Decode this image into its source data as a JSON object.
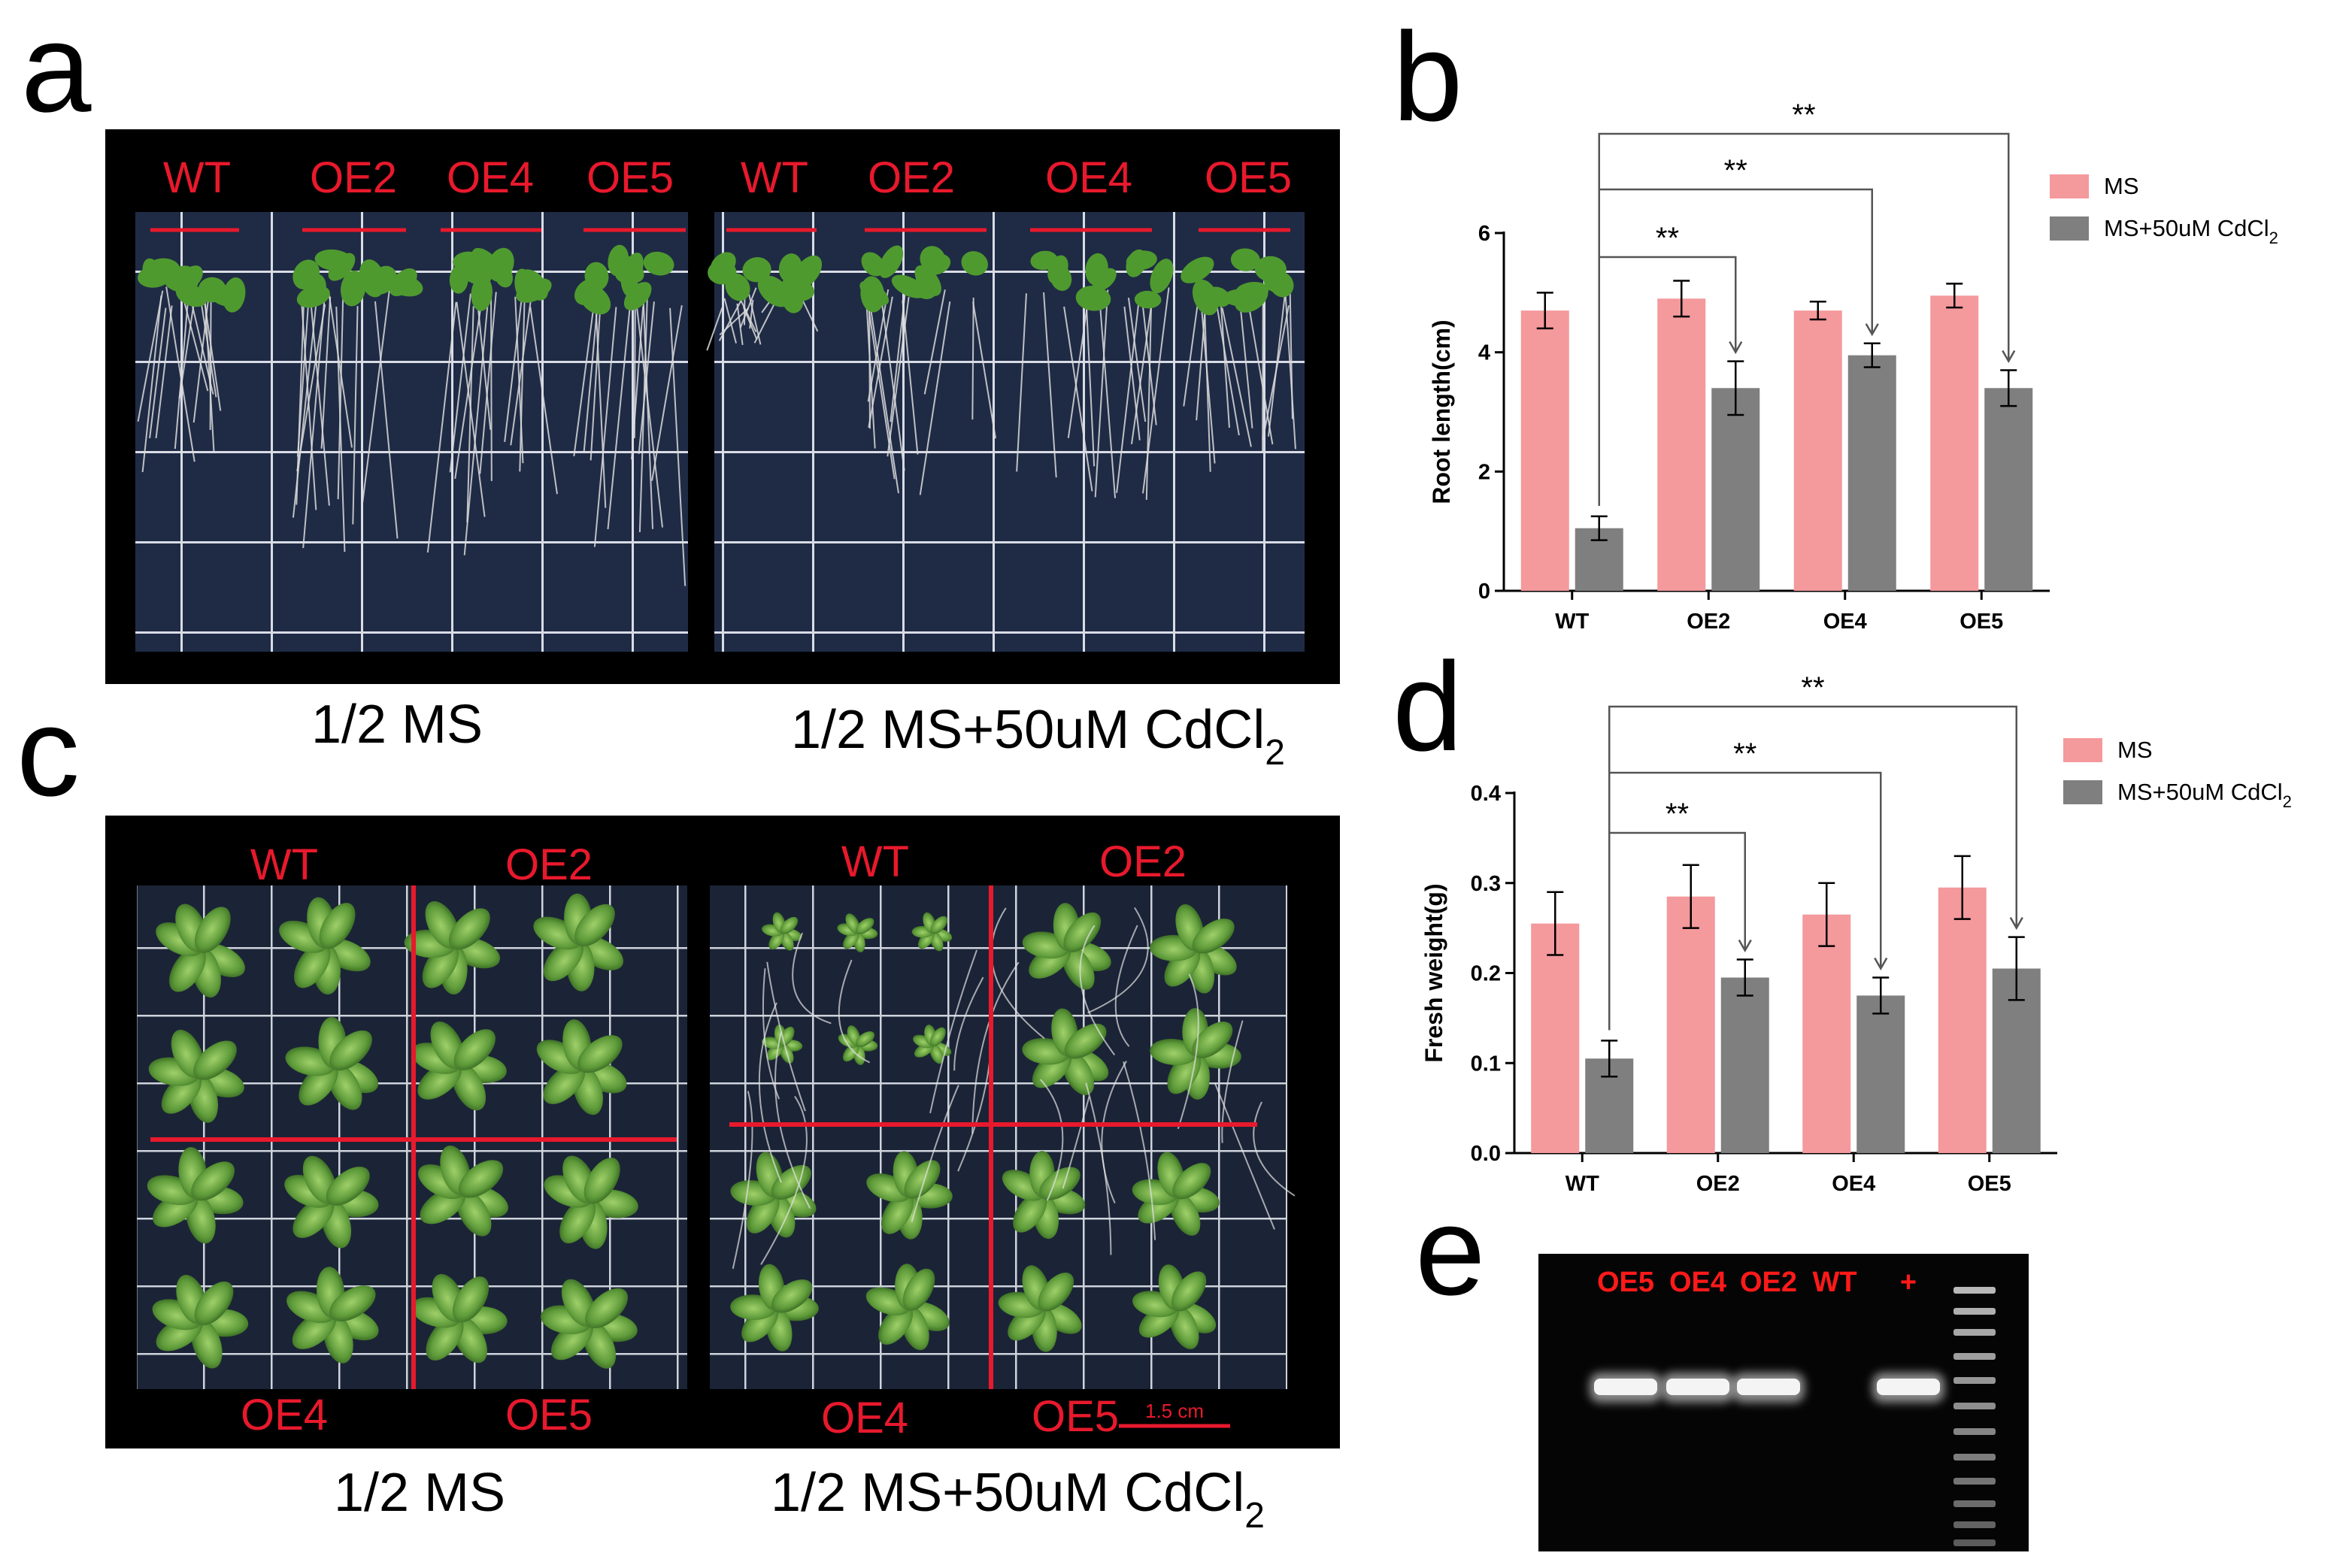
{
  "panels": {
    "a": {
      "letter": "a",
      "left_labels": [
        "WT",
        "OE2",
        "OE4",
        "OE5"
      ],
      "right_labels": [
        "WT",
        "OE2",
        "OE4",
        "OE5"
      ],
      "caption_left": "1/2 MS",
      "caption_right_main": "1/2 MS+50uM CdCl",
      "caption_right_sub": "2"
    },
    "b": {
      "letter": "b"
    },
    "c": {
      "letter": "c",
      "left_top": [
        "WT",
        "OE2"
      ],
      "left_bottom": [
        "OE4",
        "OE5"
      ],
      "right_top": [
        "WT",
        "OE2"
      ],
      "right_bottom": [
        "OE4",
        "OE5"
      ],
      "scale_bar": "1.5 cm",
      "caption_left": "1/2 MS",
      "caption_right_main": "1/2 MS+50uM CdCl",
      "caption_right_sub": "2"
    },
    "d": {
      "letter": "d"
    },
    "e": {
      "letter": "e",
      "lane_labels": [
        "OE5",
        "OE4",
        "OE2",
        "WT",
        "+"
      ]
    }
  },
  "colors": {
    "ms": "#f4999c",
    "cd": "#7f7f7f",
    "label_red": "#e8192c",
    "plate_bg": "#232f4a",
    "frame": "#000000"
  },
  "chart_data": [
    {
      "id": "b",
      "type": "bar",
      "categories": [
        "WT",
        "OE2",
        "OE4",
        "OE5"
      ],
      "series": [
        {
          "name": "MS",
          "values": [
            4.7,
            4.9,
            4.7,
            4.95
          ],
          "errors": [
            0.3,
            0.3,
            0.15,
            0.2
          ]
        },
        {
          "name": "MS+50uM CdCl",
          "name_sub": "2",
          "values": [
            1.05,
            3.4,
            3.95,
            3.4
          ],
          "errors": [
            0.2,
            0.45,
            0.2,
            0.3
          ]
        }
      ],
      "ylabel": "Root length(cm)",
      "ylim": [
        0,
        6
      ],
      "yticks": [
        0,
        2,
        4,
        6
      ],
      "ytick_labels": [
        "0",
        "2",
        "4",
        "6"
      ],
      "significance": [
        {
          "from": "WT",
          "to": "OE2",
          "label": "**"
        },
        {
          "from": "WT",
          "to": "OE4",
          "label": "**"
        },
        {
          "from": "WT",
          "to": "OE5",
          "label": "**"
        }
      ],
      "legend": "top-right"
    },
    {
      "id": "d",
      "type": "bar",
      "categories": [
        "WT",
        "OE2",
        "OE4",
        "OE5"
      ],
      "series": [
        {
          "name": "MS",
          "values": [
            0.255,
            0.285,
            0.265,
            0.295
          ],
          "errors": [
            0.035,
            0.035,
            0.035,
            0.035
          ]
        },
        {
          "name": "MS+50uM CdCl",
          "name_sub": "2",
          "values": [
            0.105,
            0.195,
            0.175,
            0.205
          ],
          "errors": [
            0.02,
            0.02,
            0.02,
            0.035
          ]
        }
      ],
      "ylabel": "Fresh weight(g)",
      "ylim": [
        0,
        0.4
      ],
      "yticks": [
        0,
        0.1,
        0.2,
        0.3,
        0.4
      ],
      "ytick_labels": [
        "0.0",
        "0.1",
        "0.2",
        "0.3",
        "0.4"
      ],
      "significance": [
        {
          "from": "WT",
          "to": "OE2",
          "label": "**"
        },
        {
          "from": "WT",
          "to": "OE4",
          "label": "**"
        },
        {
          "from": "WT",
          "to": "OE5",
          "label": "**"
        }
      ],
      "legend": "top-right"
    }
  ]
}
